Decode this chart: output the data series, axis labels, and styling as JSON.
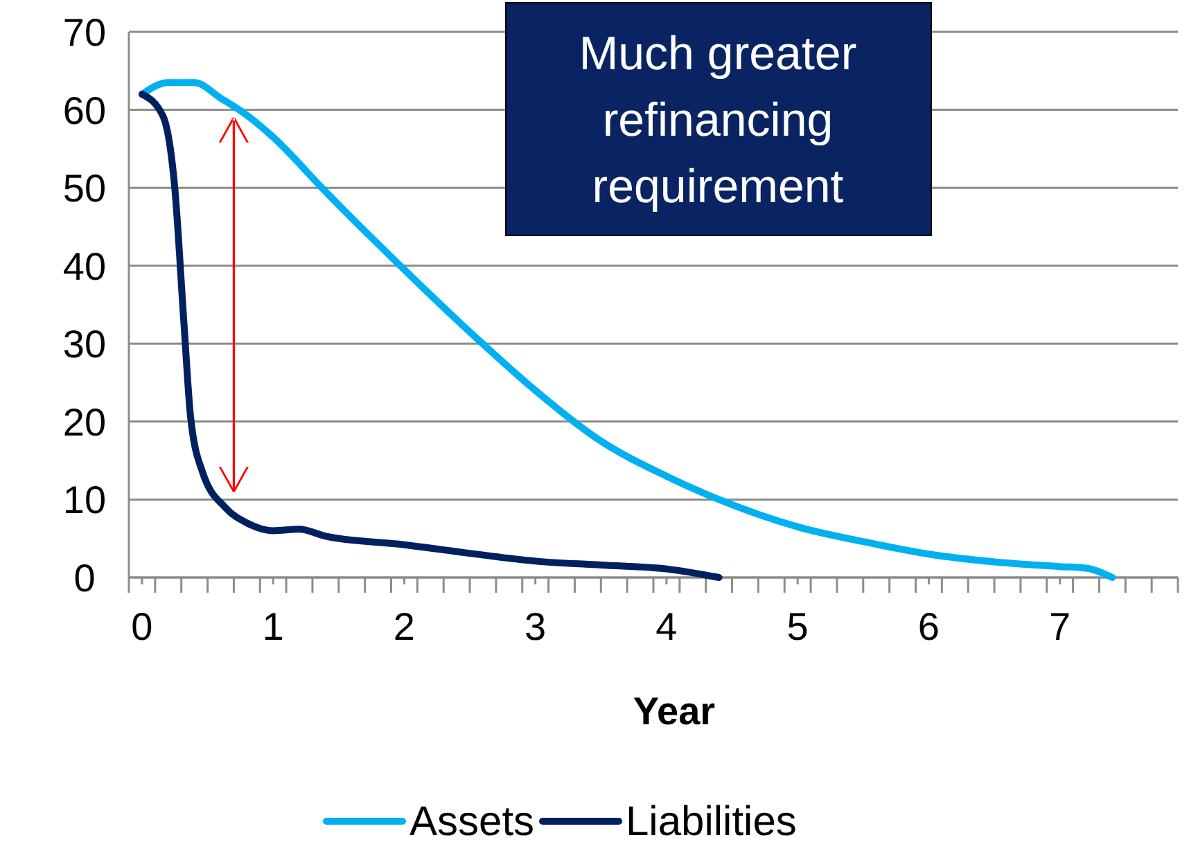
{
  "chart_data": {
    "type": "line",
    "xlabel": "Year",
    "annotations": [
      "Much greater refinancing requirement"
    ],
    "xlim": [
      -0.1,
      7.9
    ],
    "xticks": [
      0,
      1,
      2,
      3,
      4,
      5,
      6,
      7,
      {
        "value": -0.1,
        "label": null
      },
      {
        "value": 0.1,
        "label": null
      },
      {
        "value": 0.3,
        "label": null
      },
      {
        "value": 0.5,
        "label": null
      },
      {
        "value": 0.7,
        "label": null
      },
      {
        "value": 0.9,
        "label": null
      },
      {
        "value": 1.1,
        "label": null
      },
      {
        "value": 1.3,
        "label": null
      },
      {
        "value": 1.5,
        "label": null
      },
      {
        "value": 1.7,
        "label": null
      },
      {
        "value": 1.9,
        "label": null
      },
      {
        "value": 2.1,
        "label": null
      },
      {
        "value": 2.3,
        "label": null
      },
      {
        "value": 2.5,
        "label": null
      },
      {
        "value": 2.7,
        "label": null
      },
      {
        "value": 2.9,
        "label": null
      },
      {
        "value": 3.1,
        "label": null
      },
      {
        "value": 3.3,
        "label": null
      },
      {
        "value": 3.5,
        "label": null
      },
      {
        "value": 3.7,
        "label": null
      },
      {
        "value": 3.9,
        "label": null
      },
      {
        "value": 4.1,
        "label": null
      },
      {
        "value": 4.3,
        "label": null
      },
      {
        "value": 4.5,
        "label": null
      },
      {
        "value": 4.7,
        "label": null
      },
      {
        "value": 4.9,
        "label": null
      },
      {
        "value": 5.1,
        "label": null
      },
      {
        "value": 5.3,
        "label": null
      },
      {
        "value": 5.5,
        "label": null
      },
      {
        "value": 5.7,
        "label": null
      },
      {
        "value": 5.9,
        "label": null
      },
      {
        "value": 6.1,
        "label": null
      },
      {
        "value": 6.3,
        "label": null
      },
      {
        "value": 6.5,
        "label": null
      },
      {
        "value": 6.7,
        "label": null
      },
      {
        "value": 6.9,
        "label": null
      },
      {
        "value": 7.1,
        "label": null
      },
      {
        "value": 7.3,
        "label": null
      },
      {
        "value": 7.5,
        "label": null
      },
      {
        "value": 7.7,
        "label": null
      },
      {
        "value": 7.9,
        "label": null
      }
    ],
    "ylim": [
      0,
      70
    ],
    "yticks": [
      0,
      10,
      20,
      30,
      40,
      50,
      60,
      70
    ],
    "grid": "y",
    "legend": "bottom",
    "marker": "none",
    "line_style": "solid",
    "series": [
      {
        "name": "Assets",
        "color": "#00b0f0",
        "x": [
          0,
          0.2,
          0.4,
          0.6,
          0.8,
          1.0,
          1.4,
          2.0,
          2.5,
          3.0,
          3.5,
          4.0,
          4.4,
          5,
          5.5,
          6,
          6.5,
          7,
          7.2,
          7.4
        ],
        "values": [
          62,
          63.5,
          63.5,
          61.5,
          59.3,
          56.5,
          49.5,
          39.5,
          31.5,
          24,
          17.5,
          13,
          10,
          6.5,
          4.6,
          3.0,
          2.0,
          1.4,
          1.2,
          0
        ]
      },
      {
        "name": "Liabilities",
        "color": "#002060",
        "x": [
          0,
          0.16,
          0.25,
          0.32,
          0.37,
          0.46,
          0.64,
          0.8,
          1.0,
          1.2,
          1.4,
          2,
          2.5,
          3,
          3.5,
          4,
          4.4
        ],
        "values": [
          62,
          59.2,
          50,
          32.6,
          20.7,
          13.6,
          8.9,
          7,
          6,
          6.2,
          5.3,
          4.2,
          3.1,
          2.1,
          1.6,
          1.1,
          0
        ]
      }
    ]
  }
}
